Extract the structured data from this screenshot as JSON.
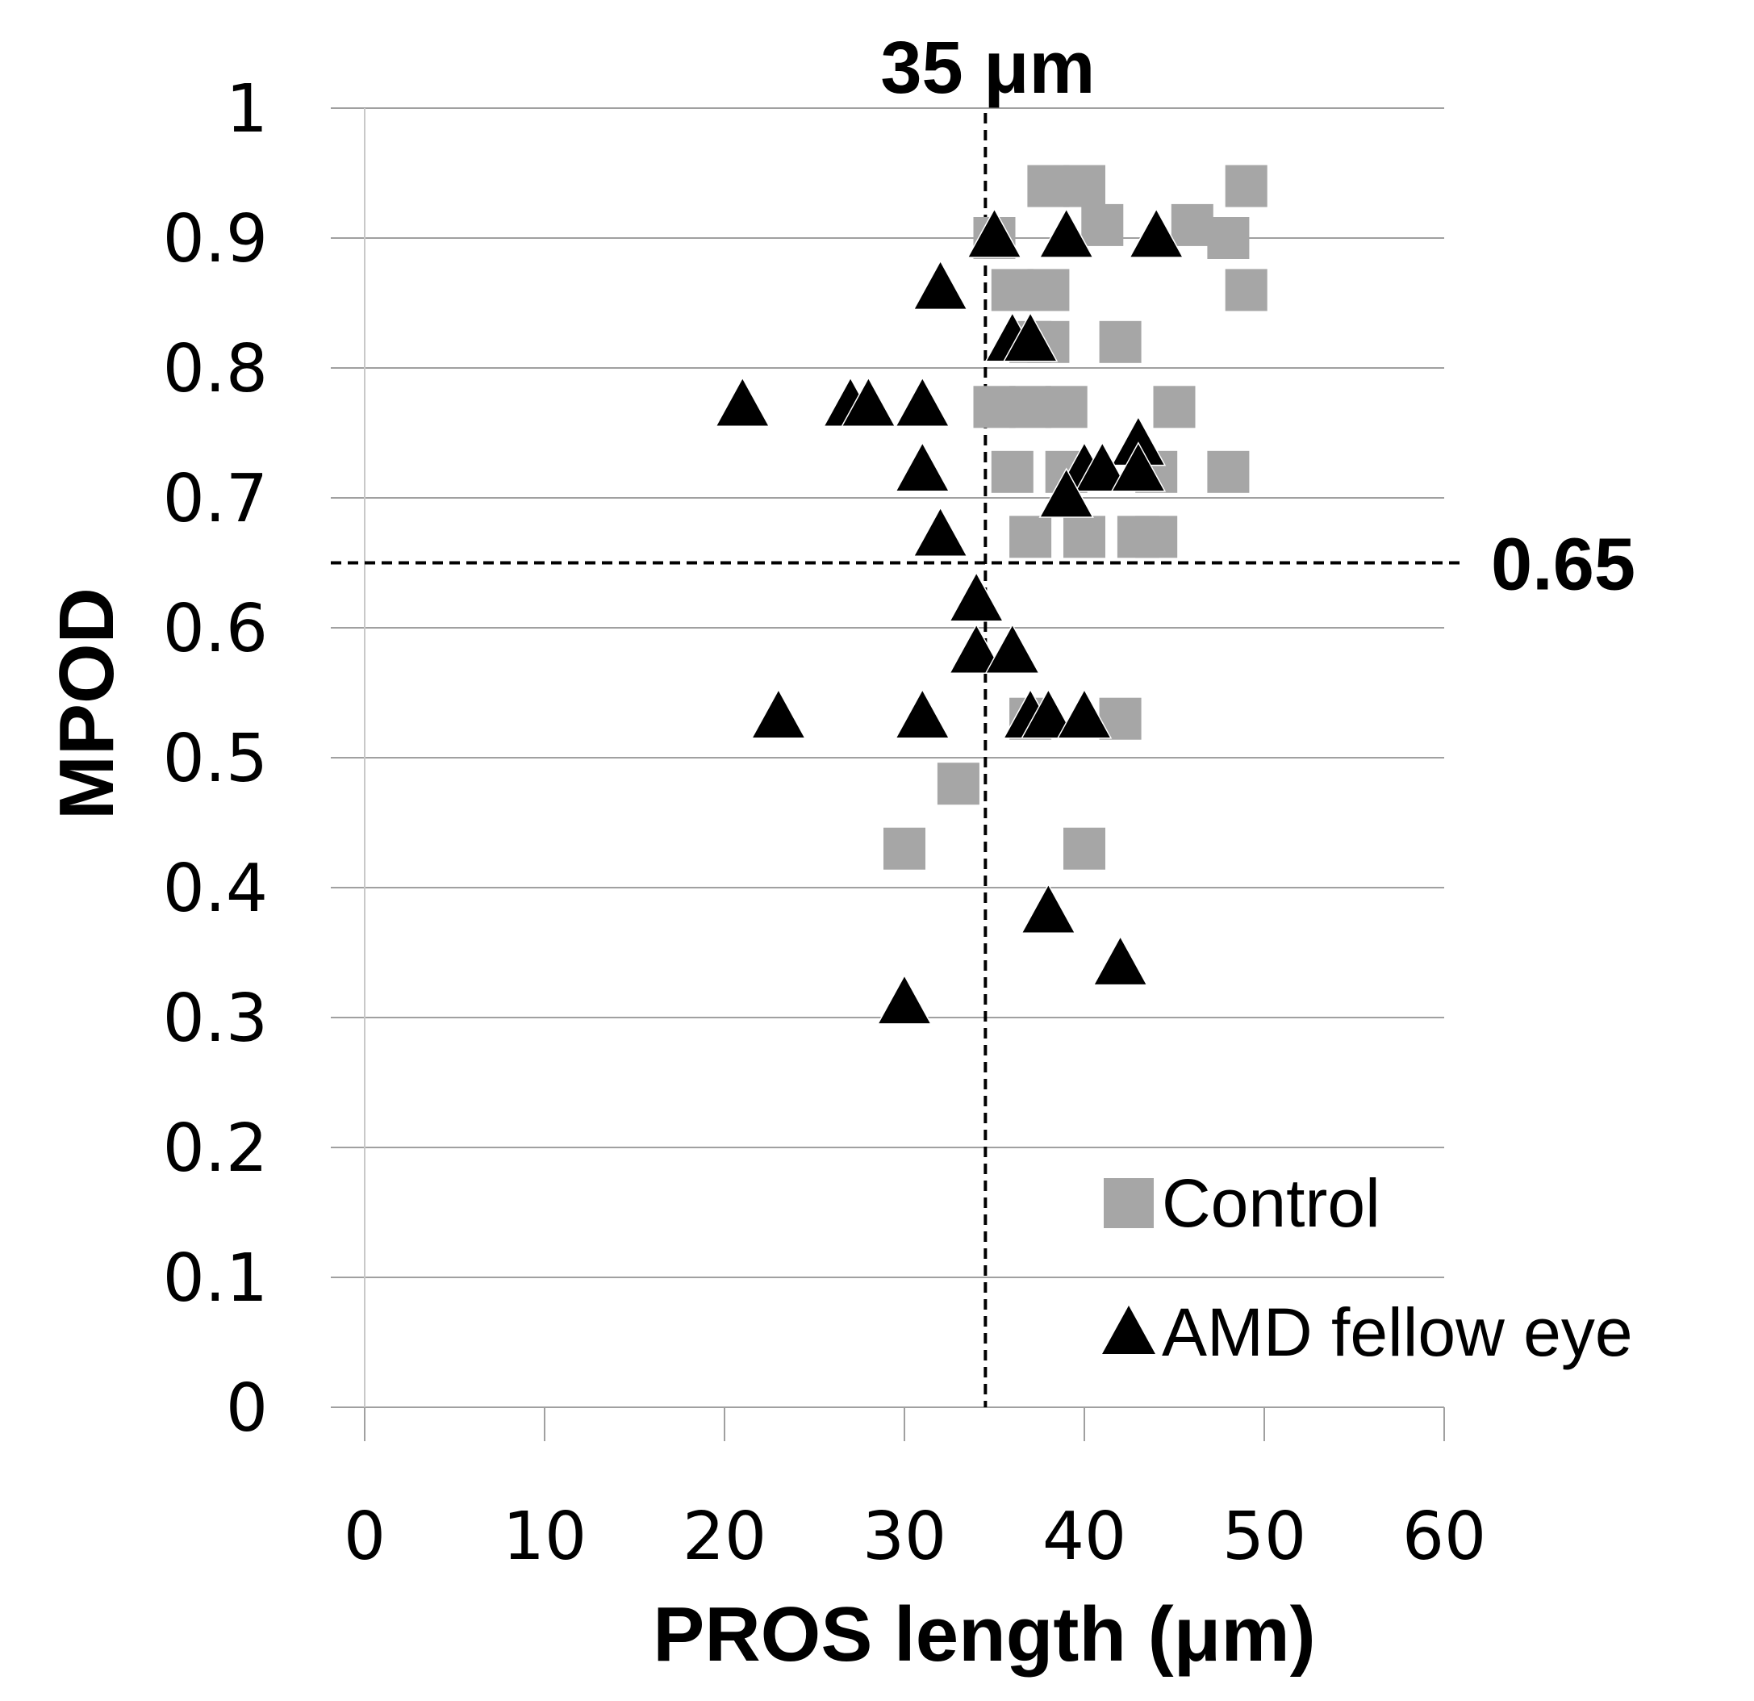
{
  "chart_data": {
    "type": "scatter",
    "title": "",
    "xlabel": "PROS length (μm)",
    "ylabel": "MPOD",
    "xlim": [
      0,
      60
    ],
    "ylim": [
      0,
      1
    ],
    "x_ticks": [
      "0",
      "10",
      "20",
      "30",
      "40",
      "50",
      "60"
    ],
    "y_ticks": [
      "0",
      "0.1",
      "0.2",
      "0.3",
      "0.4",
      "0.5",
      "0.6",
      "0.7",
      "0.8",
      "0.9",
      "1"
    ],
    "grid": "horizontal",
    "legend_position": "bottom-right",
    "reference_lines": [
      {
        "axis": "x",
        "value": 34.5,
        "label": "35 μm",
        "style": "dashed"
      },
      {
        "axis": "y",
        "value": 0.65,
        "label": "0.65",
        "style": "dashed"
      }
    ],
    "series": [
      {
        "name": "Control",
        "marker": "square",
        "color": "#a6a6a6",
        "points": [
          [
            38,
            0.94
          ],
          [
            40,
            0.94
          ],
          [
            49,
            0.94
          ],
          [
            41,
            0.91
          ],
          [
            46,
            0.91
          ],
          [
            35,
            0.9
          ],
          [
            48,
            0.9
          ],
          [
            36,
            0.86
          ],
          [
            38,
            0.86
          ],
          [
            49,
            0.86
          ],
          [
            37,
            0.82
          ],
          [
            38,
            0.82
          ],
          [
            42,
            0.82
          ],
          [
            35,
            0.77
          ],
          [
            37,
            0.77
          ],
          [
            39,
            0.77
          ],
          [
            45,
            0.77
          ],
          [
            36,
            0.72
          ],
          [
            39,
            0.72
          ],
          [
            44,
            0.72
          ],
          [
            48,
            0.72
          ],
          [
            37,
            0.67
          ],
          [
            40,
            0.67
          ],
          [
            43,
            0.67
          ],
          [
            44,
            0.67
          ],
          [
            37,
            0.53
          ],
          [
            42,
            0.53
          ],
          [
            33,
            0.48
          ],
          [
            30,
            0.43
          ],
          [
            40,
            0.43
          ]
        ]
      },
      {
        "name": "AMD fellow eye",
        "marker": "triangle",
        "color": "#000000",
        "points": [
          [
            35,
            0.9
          ],
          [
            39,
            0.9
          ],
          [
            44,
            0.9
          ],
          [
            32,
            0.86
          ],
          [
            36,
            0.82
          ],
          [
            37,
            0.82
          ],
          [
            21,
            0.77
          ],
          [
            27,
            0.77
          ],
          [
            28,
            0.77
          ],
          [
            31,
            0.77
          ],
          [
            43,
            0.74
          ],
          [
            31,
            0.72
          ],
          [
            40,
            0.72
          ],
          [
            41,
            0.72
          ],
          [
            43,
            0.72
          ],
          [
            39,
            0.7
          ],
          [
            32,
            0.67
          ],
          [
            34,
            0.62
          ],
          [
            34,
            0.58
          ],
          [
            36,
            0.58
          ],
          [
            23,
            0.53
          ],
          [
            31,
            0.53
          ],
          [
            37,
            0.53
          ],
          [
            38,
            0.53
          ],
          [
            40,
            0.53
          ],
          [
            38,
            0.38
          ],
          [
            42,
            0.34
          ],
          [
            30,
            0.31
          ]
        ]
      }
    ]
  }
}
